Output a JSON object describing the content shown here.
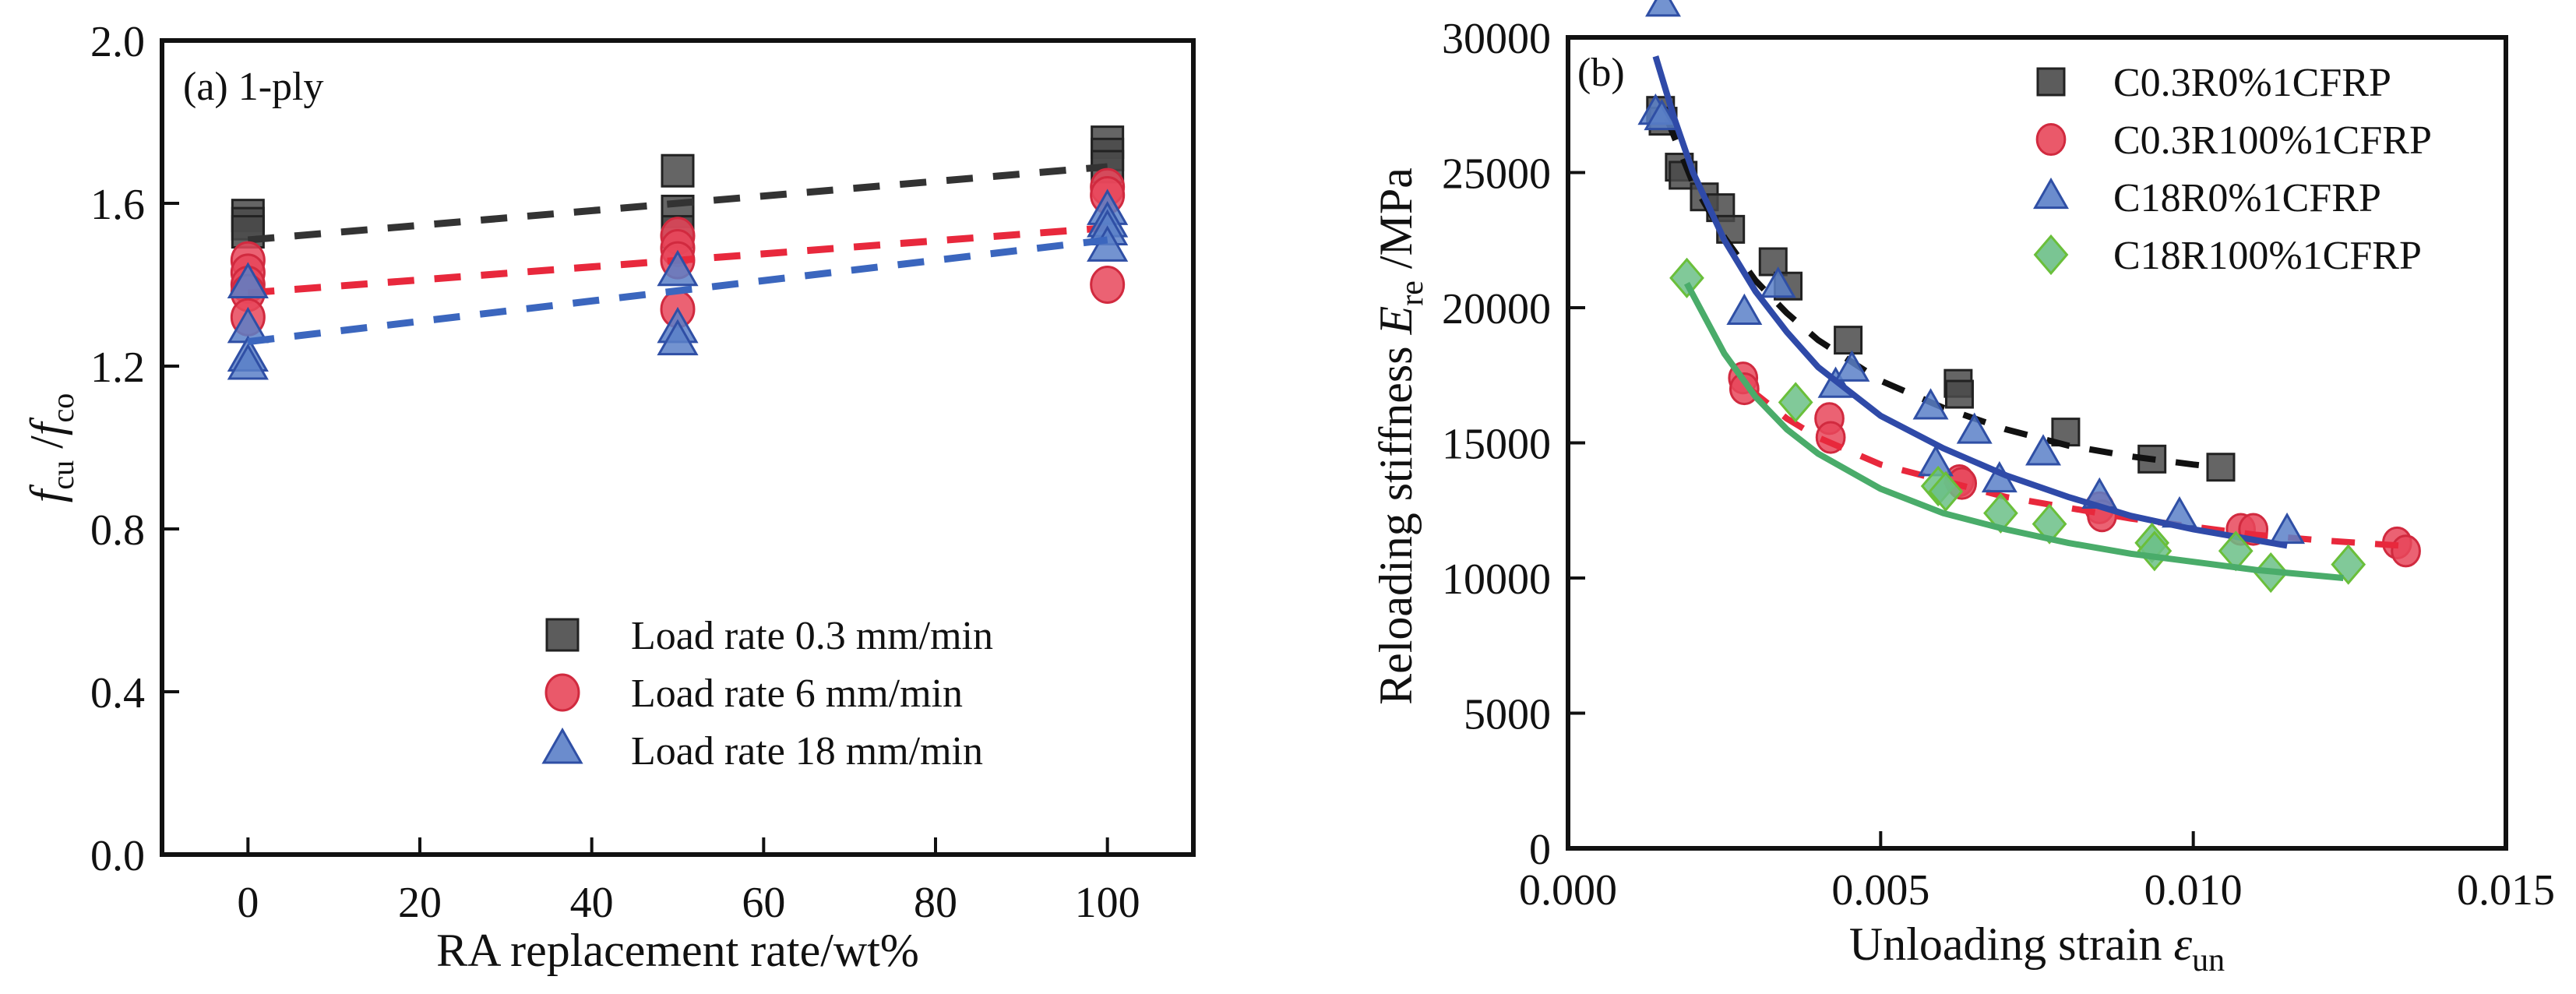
{
  "chart_data": [
    {
      "id": "a",
      "type": "scatter",
      "panel_label": "(a) 1-ply",
      "title": "",
      "xlabel": "RA replacement rate/wt%",
      "ylabel_parts": {
        "main1": "f",
        "sub1": "cu",
        "sep": " /",
        "main2": "f",
        "sub2": "co"
      },
      "ylabel": "f_cu / f_co",
      "xlim": [
        -10,
        110
      ],
      "ylim": [
        0.0,
        2.0
      ],
      "xticks": [
        0,
        20,
        40,
        60,
        80,
        100
      ],
      "xtick_labels": [
        "0",
        "20",
        "40",
        "60",
        "80",
        "100"
      ],
      "yticks": [
        0.0,
        0.4,
        0.8,
        1.2,
        1.6,
        2.0
      ],
      "ytick_labels": [
        "0.0",
        "0.4",
        "0.8",
        "1.2",
        "1.6",
        "2.0"
      ],
      "grid": false,
      "legend_position": "bottom-right",
      "series": [
        {
          "name": "Load rate 0.3 mm/min",
          "marker": "square",
          "color": "#4a4a4a",
          "edge": "#222222",
          "trend_color": "#333333",
          "points": [
            [
              0,
              1.57
            ],
            [
              0,
              1.55
            ],
            [
              0,
              1.53
            ],
            [
              50,
              1.68
            ],
            [
              50,
              1.58
            ],
            [
              50,
              1.53
            ],
            [
              100,
              1.75
            ],
            [
              100,
              1.72
            ],
            [
              100,
              1.69
            ]
          ],
          "trend": [
            [
              0,
              1.51
            ],
            [
              100,
              1.69
            ]
          ]
        },
        {
          "name": "Load rate 6 mm/min",
          "marker": "circle",
          "color": "#e8475a",
          "edge": "#d12a3f",
          "trend_color": "#e8283c",
          "points": [
            [
              0,
              1.46
            ],
            [
              0,
              1.43
            ],
            [
              0,
              1.4
            ],
            [
              0,
              1.38
            ],
            [
              0,
              1.32
            ],
            [
              50,
              1.52
            ],
            [
              50,
              1.49
            ],
            [
              50,
              1.46
            ],
            [
              50,
              1.34
            ],
            [
              100,
              1.64
            ],
            [
              100,
              1.62
            ],
            [
              100,
              1.4
            ]
          ],
          "trend": [
            [
              0,
              1.38
            ],
            [
              100,
              1.54
            ]
          ]
        },
        {
          "name": "Load rate 18 mm/min",
          "marker": "triangle",
          "color": "#5b80c8",
          "edge": "#2f4fa5",
          "trend_color": "#3b66be",
          "points": [
            [
              0,
              1.4
            ],
            [
              0,
              1.29
            ],
            [
              0,
              1.22
            ],
            [
              0,
              1.2
            ],
            [
              50,
              1.43
            ],
            [
              50,
              1.29
            ],
            [
              50,
              1.26
            ],
            [
              100,
              1.58
            ],
            [
              100,
              1.55
            ],
            [
              100,
              1.53
            ],
            [
              100,
              1.49
            ]
          ],
          "trend": [
            [
              0,
              1.26
            ],
            [
              100,
              1.51
            ]
          ]
        }
      ]
    },
    {
      "id": "b",
      "type": "scatter",
      "panel_label": "(b)",
      "title": "",
      "xlabel_parts": {
        "main": "Unloading strain ",
        "sym": "ε",
        "sub": "un"
      },
      "xlabel": "Unloading strain ε_un",
      "ylabel_parts": {
        "main": "Reloading stiffness ",
        "sym": "E",
        "sub": "re",
        "tail": " /MPa"
      },
      "ylabel": "Reloading stiffness E_re /MPa",
      "xlim": [
        0.0,
        0.015
      ],
      "ylim": [
        0,
        30000
      ],
      "xticks": [
        0.0,
        0.005,
        0.01,
        0.015
      ],
      "xtick_labels": [
        "0.000",
        "0.005",
        "0.010",
        "0.015"
      ],
      "yticks": [
        0,
        5000,
        10000,
        15000,
        20000,
        25000,
        30000
      ],
      "ytick_labels": [
        "0",
        "5000",
        "10000",
        "15000",
        "20000",
        "25000",
        "30000"
      ],
      "grid": false,
      "legend_position": "top-right",
      "series": [
        {
          "name": "C0.3R0%1CFRP",
          "marker": "square",
          "color": "#4a4a4a",
          "edge": "#222222",
          "fit_color": "#111111",
          "fit_style": "dashed",
          "points": [
            [
              0.00148,
              27300
            ],
            [
              0.00152,
              26900
            ],
            [
              0.00178,
              25200
            ],
            [
              0.00184,
              24900
            ],
            [
              0.00218,
              24100
            ],
            [
              0.00244,
              23700
            ],
            [
              0.0026,
              22900
            ],
            [
              0.00328,
              21700
            ],
            [
              0.00352,
              20800
            ],
            [
              0.00448,
              18800
            ],
            [
              0.00624,
              17200
            ],
            [
              0.00626,
              16800
            ],
            [
              0.00796,
              15400
            ],
            [
              0.00934,
              14400
            ],
            [
              0.01044,
              14100
            ]
          ],
          "fit": [
            [
              0.00158,
              27000
            ],
            [
              0.002,
              24600
            ],
            [
              0.0025,
              22600
            ],
            [
              0.003,
              21000
            ],
            [
              0.0035,
              19800
            ],
            [
              0.004,
              18800
            ],
            [
              0.005,
              17300
            ],
            [
              0.006,
              16300
            ],
            [
              0.007,
              15500
            ],
            [
              0.008,
              14900
            ],
            [
              0.009,
              14500
            ],
            [
              0.01,
              14200
            ],
            [
              0.0104,
              14100
            ]
          ]
        },
        {
          "name": "C0.3R100%1CFRP",
          "marker": "circle",
          "color": "#e8475a",
          "edge": "#d12a3f",
          "fit_color": "#e8283c",
          "fit_style": "dashed",
          "points": [
            [
              0.0028,
              17400
            ],
            [
              0.00282,
              17000
            ],
            [
              0.00418,
              15900
            ],
            [
              0.0042,
              15200
            ],
            [
              0.00626,
              13600
            ],
            [
              0.0063,
              13500
            ],
            [
              0.0085,
              12600
            ],
            [
              0.00854,
              12300
            ],
            [
              0.01076,
              11800
            ],
            [
              0.01096,
              11800
            ],
            [
              0.01326,
              11300
            ],
            [
              0.0134,
              11000
            ]
          ],
          "fit": [
            [
              0.0029,
              17000
            ],
            [
              0.0035,
              15900
            ],
            [
              0.004,
              15200
            ],
            [
              0.005,
              14200
            ],
            [
              0.006,
              13600
            ],
            [
              0.007,
              13000
            ],
            [
              0.008,
              12600
            ],
            [
              0.009,
              12200
            ],
            [
              0.01,
              11900
            ],
            [
              0.011,
              11600
            ],
            [
              0.012,
              11400
            ],
            [
              0.0133,
              11200
            ]
          ]
        },
        {
          "name": "C18R0%1CFRP",
          "marker": "triangle",
          "color": "#5b80c8",
          "edge": "#2f4fa5",
          "fit_color": "#2f4aa8",
          "fit_style": "solid",
          "points": [
            [
              0.00152,
              31200
            ],
            [
              0.0014,
              27200
            ],
            [
              0.0015,
              27000
            ],
            [
              0.00282,
              19800
            ],
            [
              0.00336,
              20800
            ],
            [
              0.00428,
              17100
            ],
            [
              0.00454,
              17700
            ],
            [
              0.0058,
              16300
            ],
            [
              0.0065,
              15400
            ],
            [
              0.0076,
              14600
            ],
            [
              0.00588,
              14200
            ],
            [
              0.0069,
              13600
            ],
            [
              0.0085,
              13000
            ],
            [
              0.00978,
              12300
            ],
            [
              0.0115,
              11700
            ]
          ],
          "fit": [
            [
              0.0014,
              29300
            ],
            [
              0.0017,
              27000
            ],
            [
              0.002,
              25000
            ],
            [
              0.0025,
              22500
            ],
            [
              0.003,
              20600
            ],
            [
              0.0035,
              19100
            ],
            [
              0.004,
              17800
            ],
            [
              0.005,
              16000
            ],
            [
              0.006,
              14800
            ],
            [
              0.007,
              13800
            ],
            [
              0.008,
              13000
            ],
            [
              0.009,
              12300
            ],
            [
              0.01,
              11800
            ],
            [
              0.011,
              11400
            ],
            [
              0.0115,
              11200
            ]
          ]
        },
        {
          "name": "C18R100%1CFRP",
          "marker": "diamond",
          "color": "#6bbf87",
          "edge": "#6abf3a",
          "fit_color": "#4aac6a",
          "fit_style": "solid",
          "points": [
            [
              0.0019,
              21100
            ],
            [
              0.00364,
              16500
            ],
            [
              0.00592,
              13400
            ],
            [
              0.00604,
              13200
            ],
            [
              0.00692,
              12400
            ],
            [
              0.0077,
              12000
            ],
            [
              0.00934,
              11300
            ],
            [
              0.00938,
              11000
            ],
            [
              0.01068,
              11000
            ],
            [
              0.01124,
              10200
            ],
            [
              0.01248,
              10500
            ]
          ],
          "fit": [
            [
              0.0019,
              20900
            ],
            [
              0.0025,
              18300
            ],
            [
              0.003,
              16700
            ],
            [
              0.0035,
              15500
            ],
            [
              0.004,
              14600
            ],
            [
              0.005,
              13300
            ],
            [
              0.006,
              12400
            ],
            [
              0.007,
              11800
            ],
            [
              0.008,
              11300
            ],
            [
              0.009,
              10900
            ],
            [
              0.01,
              10600
            ],
            [
              0.011,
              10300
            ],
            [
              0.0124,
              10000
            ]
          ]
        }
      ]
    }
  ]
}
